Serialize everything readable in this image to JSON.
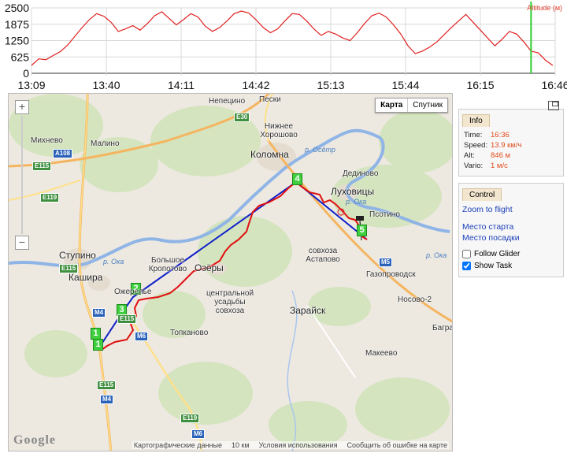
{
  "chart_data": {
    "type": "line",
    "title": "",
    "legend": "Altitude (м)",
    "xlabel": "",
    "ylabel": "",
    "yticks": [
      "2500",
      "1875",
      "1250",
      "625",
      "0"
    ],
    "xticks": [
      "13:09",
      "13:40",
      "14:11",
      "14:42",
      "15:13",
      "15:44",
      "16:15",
      "16:46"
    ],
    "ylim": [
      0,
      2500
    ],
    "x_minutes_range": [
      "13:09",
      "16:46"
    ],
    "series": [
      {
        "name": "Altitude (м)",
        "color": "#e02020",
        "x": [
          "13:09",
          "13:12",
          "13:15",
          "13:18",
          "13:21",
          "13:24",
          "13:27",
          "13:30",
          "13:33",
          "13:36",
          "13:39",
          "13:42",
          "13:45",
          "13:48",
          "13:51",
          "13:54",
          "13:57",
          "14:00",
          "14:03",
          "14:06",
          "14:09",
          "14:12",
          "14:15",
          "14:18",
          "14:21",
          "14:24",
          "14:27",
          "14:30",
          "14:33",
          "14:36",
          "14:39",
          "14:42",
          "14:45",
          "14:48",
          "14:51",
          "14:54",
          "14:57",
          "15:00",
          "15:03",
          "15:06",
          "15:09",
          "15:12",
          "15:15",
          "15:18",
          "15:21",
          "15:24",
          "15:27",
          "15:30",
          "15:33",
          "15:36",
          "15:39",
          "15:42",
          "15:45",
          "15:48",
          "15:51",
          "15:54",
          "15:57",
          "16:00",
          "16:03",
          "16:06",
          "16:09",
          "16:12",
          "16:15",
          "16:18",
          "16:21",
          "16:24",
          "16:27",
          "16:30",
          "16:33",
          "16:36",
          "16:39",
          "16:42",
          "16:45"
        ],
        "values": [
          300,
          550,
          520,
          680,
          830,
          1080,
          1420,
          1750,
          2050,
          2280,
          2180,
          1950,
          1600,
          1700,
          1820,
          1650,
          1900,
          2200,
          2350,
          2100,
          1850,
          2050,
          2280,
          2150,
          1800,
          1600,
          1750,
          2000,
          2280,
          2380,
          2300,
          2050,
          1750,
          1550,
          1700,
          2000,
          2280,
          2250,
          2000,
          1700,
          1450,
          1600,
          1500,
          1350,
          1250,
          1550,
          1900,
          2200,
          2300,
          2150,
          1850,
          1500,
          1050,
          750,
          850,
          1000,
          1200,
          1480,
          1750,
          2000,
          2250,
          1950,
          1650,
          1350,
          1050,
          1300,
          1600,
          1500,
          1200,
          846,
          780,
          500,
          300
        ]
      }
    ],
    "cursor_time": "16:36"
  },
  "map": {
    "type_buttons": [
      "Карта",
      "Спутник"
    ],
    "active_type": "Карта",
    "zoom_in": "+",
    "zoom_out": "−",
    "towns": [
      {
        "name": "Непецино",
        "big": false
      },
      {
        "name": "Пески",
        "big": false
      },
      {
        "name": "Нижнее Хорошово",
        "big": false
      },
      {
        "name": "Михнево",
        "big": false
      },
      {
        "name": "Малино",
        "big": false
      },
      {
        "name": "Коломна",
        "big": true
      },
      {
        "name": "Дединово",
        "big": false
      },
      {
        "name": "Луховицы",
        "big": true
      },
      {
        "name": "Псотино",
        "big": false
      },
      {
        "name": "Ступино",
        "big": true
      },
      {
        "name": "Большое Кропотово",
        "big": false
      },
      {
        "name": "Озёры",
        "big": true
      },
      {
        "name": "совхоза Астапово",
        "big": false
      },
      {
        "name": "Кашира",
        "big": true
      },
      {
        "name": "Ожерелье",
        "big": false
      },
      {
        "name": "центральной усадьбы совхоза",
        "big": false
      },
      {
        "name": "Газопроводск",
        "big": false
      },
      {
        "name": "Зарайск",
        "big": true
      },
      {
        "name": "Топканово",
        "big": false
      },
      {
        "name": "Носово-2",
        "big": false
      },
      {
        "name": "Макеево",
        "big": false
      },
      {
        "name": "Багра",
        "big": false
      }
    ],
    "roads": [
      "E30",
      "A108",
      "E115",
      "E119",
      "E115",
      "M4",
      "E115",
      "M6",
      "M5",
      "E119",
      "M6",
      "M4",
      "E115"
    ],
    "rivers": [
      "р. Ока",
      "р. Ока",
      "р. Ока",
      "р. Осётр"
    ],
    "waypoints": [
      "1",
      "1",
      "2",
      "3",
      "4",
      "5"
    ],
    "track_color": "#e01010",
    "task_color": "#1020c8",
    "logo": "Google",
    "attribution": {
      "data": "Картографические данные",
      "scale": "10 км",
      "terms": "Условия использования",
      "report": "Сообщить об ошибке на карте"
    }
  },
  "info": {
    "tab": "Info",
    "rows": [
      {
        "label": "Time:",
        "value": "16:36"
      },
      {
        "label": "Speed:",
        "value": "13.9 км/ч"
      },
      {
        "label": "Alt:",
        "value": "846 м"
      },
      {
        "label": "Vario:",
        "value": "1 м/с"
      }
    ]
  },
  "control": {
    "tab": "Control",
    "zoom_link": "Zoom to flight",
    "start_link": "Место старта",
    "landing_link": "Место посадки",
    "follow_label": "Follow Glider",
    "follow_checked": false,
    "task_label": "Show Task",
    "task_checked": true
  }
}
